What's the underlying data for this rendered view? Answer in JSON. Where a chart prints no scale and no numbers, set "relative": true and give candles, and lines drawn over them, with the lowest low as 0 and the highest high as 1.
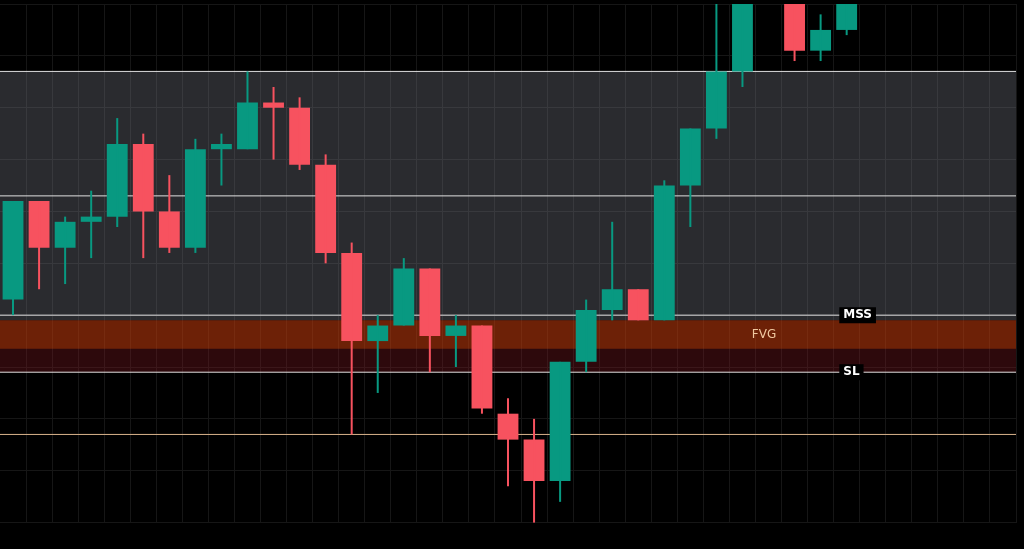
{
  "chart_data": {
    "type": "candlestick",
    "relative": true,
    "grid": true,
    "legend": false,
    "categories": [
      null,
      null,
      null,
      null,
      null,
      null,
      null,
      null,
      null,
      null,
      null,
      null,
      null,
      null,
      null,
      null,
      null,
      null,
      null,
      null,
      null,
      null,
      null,
      null,
      null,
      null,
      null,
      null,
      null,
      null,
      null,
      null,
      null,
      null,
      null,
      null,
      null,
      null,
      null
    ],
    "ohlc": [
      [
        0.43,
        0.62,
        0.4,
        0.62
      ],
      [
        0.62,
        0.62,
        0.45,
        0.53
      ],
      [
        0.53,
        0.59,
        0.46,
        0.58
      ],
      [
        0.58,
        0.64,
        0.51,
        0.59
      ],
      [
        0.59,
        0.78,
        0.57,
        0.73
      ],
      [
        0.73,
        0.75,
        0.51,
        0.6
      ],
      [
        0.6,
        0.67,
        0.52,
        0.53
      ],
      [
        0.53,
        0.74,
        0.52,
        0.72
      ],
      [
        0.72,
        0.75,
        0.65,
        0.73
      ],
      [
        0.72,
        0.87,
        0.72,
        0.81
      ],
      [
        0.81,
        0.84,
        0.7,
        0.8
      ],
      [
        0.8,
        0.82,
        0.68,
        0.69
      ],
      [
        0.69,
        0.71,
        0.5,
        0.52
      ],
      [
        0.52,
        0.54,
        0.17,
        0.35
      ],
      [
        0.35,
        0.4,
        0.25,
        0.38
      ],
      [
        0.38,
        0.51,
        0.38,
        0.49
      ],
      [
        0.49,
        0.49,
        0.29,
        0.36
      ],
      [
        0.36,
        0.4,
        0.3,
        0.38
      ],
      [
        0.38,
        0.38,
        0.21,
        0.22
      ],
      [
        0.21,
        0.24,
        0.07,
        0.16
      ],
      [
        0.16,
        0.2,
        0,
        0.08
      ],
      [
        0.08,
        0.31,
        0.04,
        0.31
      ],
      [
        0.31,
        0.43,
        0.29,
        0.41
      ],
      [
        0.41,
        0.58,
        0.39,
        0.45
      ],
      [
        0.45,
        0.45,
        0.39,
        0.39
      ],
      [
        0.39,
        0.66,
        0.39,
        0.65
      ],
      [
        0.65,
        0.76,
        0.57,
        0.76
      ],
      [
        0.76,
        1,
        0.74,
        0.87
      ],
      [
        0.87,
        1,
        0.84,
        1
      ],
      null,
      [
        1,
        1,
        0.89,
        0.91
      ],
      [
        0.91,
        0.98,
        0.89,
        0.95
      ],
      [
        0.95,
        1,
        0.94,
        1
      ],
      null,
      null,
      null,
      null,
      null,
      null
    ],
    "colors": [
      "#089981",
      "#f7525f",
      "#089981",
      "#089981",
      "#089981",
      "#f7525f",
      "#f7525f",
      "#089981",
      "#089981",
      "#089981",
      "#f7525f",
      "#f7525f",
      "#f7525f",
      "#f7525f",
      "#089981",
      "#089981",
      "#f7525f",
      "#089981",
      "#f7525f",
      "#f7525f",
      "#f7525f",
      "#089981",
      "#089981",
      "#089981",
      "#f7525f",
      "#089981",
      "#089981",
      "#089981",
      "#089981",
      null,
      "#f7525f",
      "#089981",
      "#089981",
      null,
      null,
      null,
      null,
      null,
      null
    ],
    "ref_lines": [
      {
        "axis": "y",
        "value": 0.63,
        "color": "#e0e0e0"
      },
      {
        "axis": "y",
        "value": 0.87,
        "color": "#e0e0e0"
      },
      {
        "axis": "y",
        "value": 0.17,
        "color": "#d9b38c"
      },
      {
        "axis": "y",
        "value": 0.4,
        "label": "MSS",
        "color": "#e0e0e0"
      },
      {
        "axis": "y",
        "value": 0.29,
        "label": "SL",
        "color": "#e0e0e0"
      }
    ],
    "bands": [
      {
        "axis": "y",
        "from": 0.39,
        "to": 0.87,
        "color": "#787b86"
      },
      {
        "axis": "y",
        "from": 0.29,
        "to": 0.39,
        "color": "#801922"
      },
      {
        "axis": "y",
        "from": 0.335,
        "to": 0.39,
        "label": "FVG",
        "color": "#e65100"
      }
    ]
  }
}
